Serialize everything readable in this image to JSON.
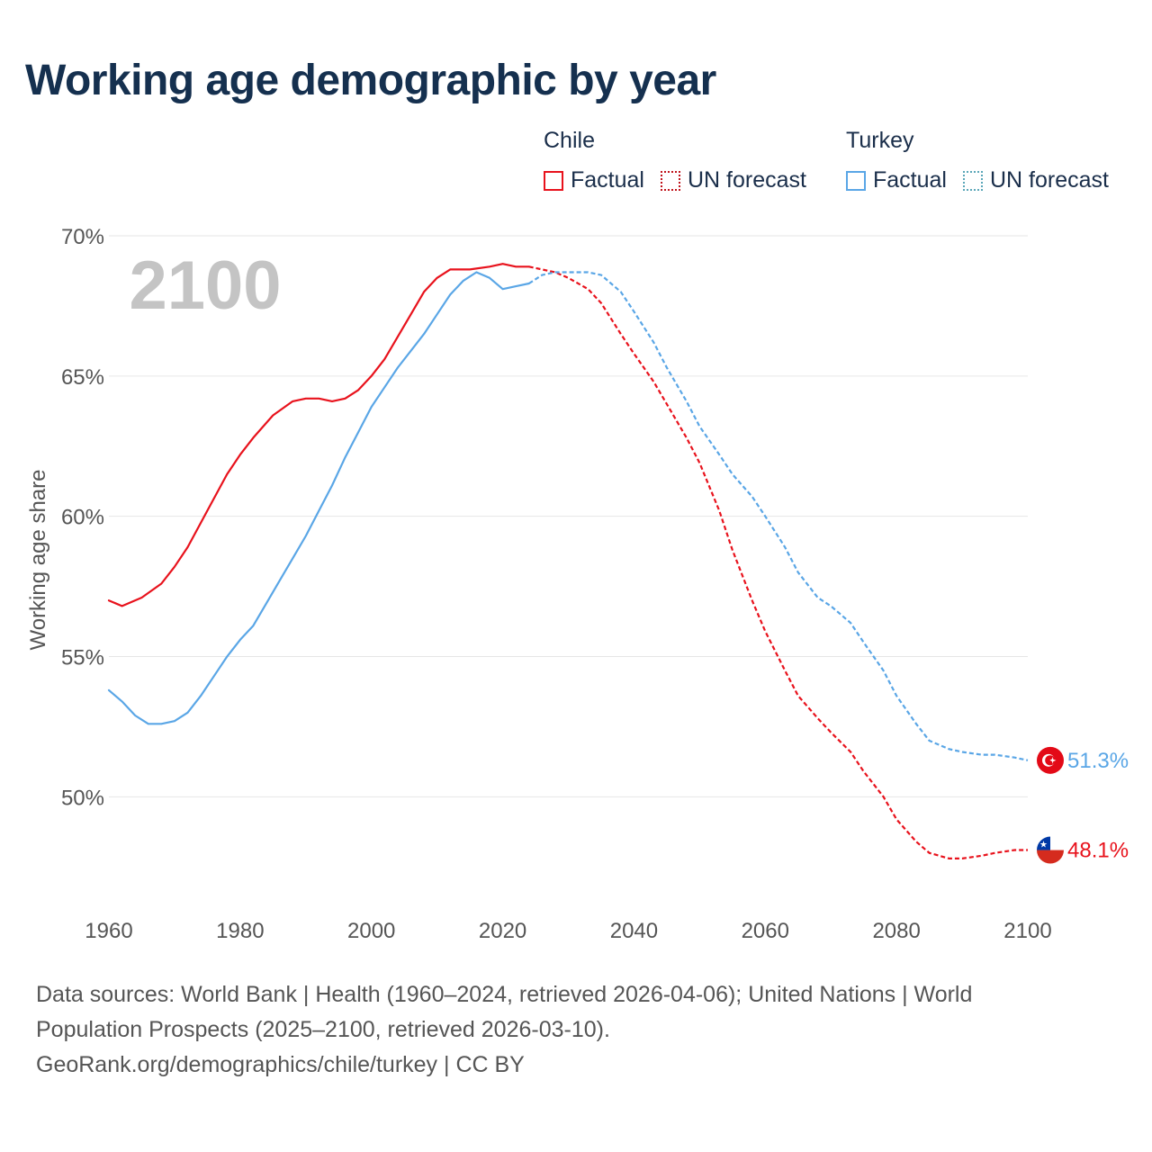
{
  "title": "Working age demographic by year",
  "legend": {
    "chile": {
      "country": "Chile",
      "factual": "Factual",
      "forecast": "UN forecast"
    },
    "turkey": {
      "country": "Turkey",
      "factual": "Factual",
      "forecast": "UN forecast"
    }
  },
  "colors": {
    "chile": "#e8121c",
    "turkey": "#5aa6e6",
    "year_watermark": "#c4c4c4",
    "grid": "#e6e6e6"
  },
  "footer": {
    "line1": "Data sources: World Bank | Health (1960–2024, retrieved 2026-04-06); United Nations | World",
    "line2": "Population Prospects (2025–2100, retrieved 2026-03-10).",
    "line3": "GeoRank.org/demographics/chile/turkey | CC BY"
  },
  "chart_data": {
    "type": "line",
    "ylabel": "Working age share",
    "xlabel": "",
    "year_label": "2100",
    "xlim": [
      1960,
      2100
    ],
    "ylim": [
      46,
      70
    ],
    "x_ticks": [
      1960,
      1980,
      2000,
      2020,
      2040,
      2060,
      2080,
      2100
    ],
    "y_ticks": [
      {
        "value": 50,
        "label": "50%"
      },
      {
        "value": 55,
        "label": "55%"
      },
      {
        "value": 60,
        "label": "60%"
      },
      {
        "value": 65,
        "label": "65%"
      },
      {
        "value": 70,
        "label": "70%"
      }
    ],
    "factual_range": [
      1960,
      2024
    ],
    "forecast_range": [
      2024,
      2100
    ],
    "series": [
      {
        "name": "Chile",
        "color": "#e8121c",
        "end_label": "48.1%",
        "flag": "chile",
        "points": [
          [
            1960,
            57.0
          ],
          [
            1962,
            56.8
          ],
          [
            1965,
            57.1
          ],
          [
            1968,
            57.6
          ],
          [
            1970,
            58.2
          ],
          [
            1972,
            58.9
          ],
          [
            1975,
            60.2
          ],
          [
            1978,
            61.5
          ],
          [
            1980,
            62.2
          ],
          [
            1982,
            62.8
          ],
          [
            1985,
            63.6
          ],
          [
            1988,
            64.1
          ],
          [
            1990,
            64.2
          ],
          [
            1992,
            64.2
          ],
          [
            1994,
            64.1
          ],
          [
            1996,
            64.2
          ],
          [
            1998,
            64.5
          ],
          [
            2000,
            65.0
          ],
          [
            2002,
            65.6
          ],
          [
            2004,
            66.4
          ],
          [
            2006,
            67.2
          ],
          [
            2008,
            68.0
          ],
          [
            2010,
            68.5
          ],
          [
            2012,
            68.8
          ],
          [
            2015,
            68.8
          ],
          [
            2018,
            68.9
          ],
          [
            2020,
            69.0
          ],
          [
            2022,
            68.9
          ],
          [
            2024,
            68.9
          ],
          [
            2026,
            68.8
          ],
          [
            2028,
            68.7
          ],
          [
            2030,
            68.5
          ],
          [
            2033,
            68.1
          ],
          [
            2035,
            67.6
          ],
          [
            2038,
            66.5
          ],
          [
            2040,
            65.8
          ],
          [
            2043,
            64.8
          ],
          [
            2045,
            64.0
          ],
          [
            2048,
            62.8
          ],
          [
            2050,
            61.9
          ],
          [
            2053,
            60.2
          ],
          [
            2055,
            58.8
          ],
          [
            2058,
            57.0
          ],
          [
            2060,
            55.9
          ],
          [
            2063,
            54.5
          ],
          [
            2065,
            53.6
          ],
          [
            2068,
            52.8
          ],
          [
            2070,
            52.3
          ],
          [
            2073,
            51.6
          ],
          [
            2075,
            50.9
          ],
          [
            2078,
            50.0
          ],
          [
            2080,
            49.2
          ],
          [
            2083,
            48.4
          ],
          [
            2085,
            48.0
          ],
          [
            2088,
            47.8
          ],
          [
            2090,
            47.8
          ],
          [
            2093,
            47.9
          ],
          [
            2095,
            48.0
          ],
          [
            2098,
            48.1
          ],
          [
            2100,
            48.1
          ]
        ]
      },
      {
        "name": "Turkey",
        "color": "#5aa6e6",
        "end_label": "51.3%",
        "flag": "turkey",
        "points": [
          [
            1960,
            53.8
          ],
          [
            1962,
            53.4
          ],
          [
            1964,
            52.9
          ],
          [
            1966,
            52.6
          ],
          [
            1968,
            52.6
          ],
          [
            1970,
            52.7
          ],
          [
            1972,
            53.0
          ],
          [
            1974,
            53.6
          ],
          [
            1976,
            54.3
          ],
          [
            1978,
            55.0
          ],
          [
            1980,
            55.6
          ],
          [
            1982,
            56.1
          ],
          [
            1984,
            56.9
          ],
          [
            1986,
            57.7
          ],
          [
            1988,
            58.5
          ],
          [
            1990,
            59.3
          ],
          [
            1992,
            60.2
          ],
          [
            1994,
            61.1
          ],
          [
            1996,
            62.1
          ],
          [
            1998,
            63.0
          ],
          [
            2000,
            63.9
          ],
          [
            2002,
            64.6
          ],
          [
            2004,
            65.3
          ],
          [
            2006,
            65.9
          ],
          [
            2008,
            66.5
          ],
          [
            2010,
            67.2
          ],
          [
            2012,
            67.9
          ],
          [
            2014,
            68.4
          ],
          [
            2016,
            68.7
          ],
          [
            2018,
            68.5
          ],
          [
            2020,
            68.1
          ],
          [
            2022,
            68.2
          ],
          [
            2024,
            68.3
          ],
          [
            2026,
            68.6
          ],
          [
            2028,
            68.7
          ],
          [
            2030,
            68.7
          ],
          [
            2033,
            68.7
          ],
          [
            2035,
            68.6
          ],
          [
            2038,
            68.0
          ],
          [
            2040,
            67.3
          ],
          [
            2043,
            66.2
          ],
          [
            2045,
            65.3
          ],
          [
            2048,
            64.1
          ],
          [
            2050,
            63.2
          ],
          [
            2053,
            62.2
          ],
          [
            2055,
            61.5
          ],
          [
            2058,
            60.7
          ],
          [
            2060,
            60.0
          ],
          [
            2063,
            58.9
          ],
          [
            2065,
            58.0
          ],
          [
            2068,
            57.1
          ],
          [
            2070,
            56.8
          ],
          [
            2073,
            56.2
          ],
          [
            2075,
            55.5
          ],
          [
            2078,
            54.5
          ],
          [
            2080,
            53.6
          ],
          [
            2083,
            52.6
          ],
          [
            2085,
            52.0
          ],
          [
            2088,
            51.7
          ],
          [
            2090,
            51.6
          ],
          [
            2093,
            51.5
          ],
          [
            2095,
            51.5
          ],
          [
            2098,
            51.4
          ],
          [
            2100,
            51.3
          ]
        ]
      }
    ]
  }
}
